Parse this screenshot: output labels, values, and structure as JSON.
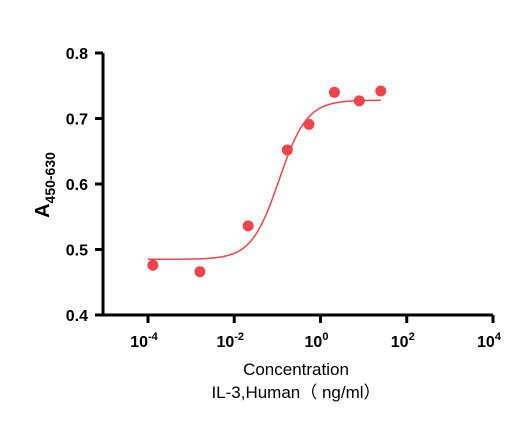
{
  "chart_data": {
    "type": "scatter",
    "title": "",
    "xlabel": [
      "Concentration",
      "IL-3,Human（ ng/ml）"
    ],
    "ylabel": {
      "base": "A",
      "subscript": "450-630"
    },
    "x_scale": "log",
    "xlim": [
      0.0001,
      10000
    ],
    "ylim": [
      0.4,
      0.8
    ],
    "x_ticks": [
      {
        "value": 0.0001,
        "base": "10",
        "exp": "-4"
      },
      {
        "value": 0.01,
        "base": "10",
        "exp": "-2"
      },
      {
        "value": 1,
        "base": "10",
        "exp": "0"
      },
      {
        "value": 100,
        "base": "10",
        "exp": "2"
      },
      {
        "value": 10000,
        "base": "10",
        "exp": "4"
      }
    ],
    "y_ticks": [
      "0.4",
      "0.5",
      "0.6",
      "0.7",
      "0.8"
    ],
    "grid": false,
    "point_color": "#f0444a",
    "series": [
      {
        "points": [
          {
            "x": 0.00013,
            "y": 0.476
          },
          {
            "x": 0.0016,
            "y": 0.466
          },
          {
            "x": 0.021,
            "y": 0.536
          },
          {
            "x": 0.17,
            "y": 0.652
          },
          {
            "x": 0.54,
            "y": 0.691
          },
          {
            "x": 2.1,
            "y": 0.74
          },
          {
            "x": 7.9,
            "y": 0.727
          },
          {
            "x": 25,
            "y": 0.742
          }
        ],
        "fit": {
          "bottom": 0.485,
          "top": 0.728,
          "ec50": 0.11,
          "hill": 1.35,
          "x_range": [
            0.0001,
            25
          ]
        }
      }
    ]
  }
}
